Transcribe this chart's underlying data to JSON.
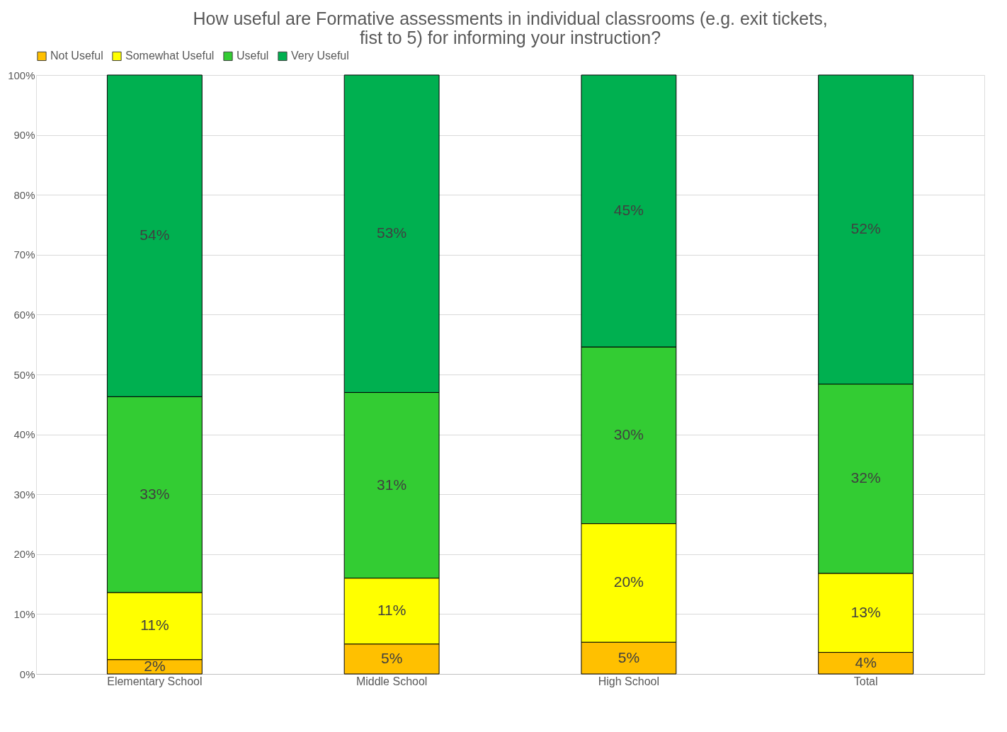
{
  "chart_data": {
    "type": "bar",
    "stacked": true,
    "title": "How useful are Formative assessments in individual classrooms (e.g. exit tickets, fist to 5) for informing your instruction?",
    "categories": [
      "Elementary School",
      "Middle School",
      "High School",
      "Total"
    ],
    "series": [
      {
        "name": "Not Useful",
        "color": "#ffc000",
        "values": [
          2.4,
          5.0,
          5.3,
          3.6
        ],
        "value_labels": [
          "2%",
          "5%",
          "5%",
          "4%"
        ]
      },
      {
        "name": "Somewhat Useful",
        "color": "#ffff00",
        "values": [
          11.2,
          11.0,
          19.8,
          13.2
        ],
        "value_labels": [
          "11%",
          "11%",
          "20%",
          "13%"
        ]
      },
      {
        "name": "Useful",
        "color": "#33cc33",
        "values": [
          32.7,
          31.0,
          29.5,
          31.6
        ],
        "value_labels": [
          "33%",
          "31%",
          "30%",
          "32%"
        ]
      },
      {
        "name": "Very Useful",
        "color": "#00b050",
        "values": [
          53.7,
          53.0,
          45.4,
          51.6
        ],
        "value_labels": [
          "54%",
          "53%",
          "45%",
          "52%"
        ]
      }
    ],
    "ylim": [
      0,
      100
    ],
    "yticks": [
      {
        "value": 0,
        "label": "0%"
      },
      {
        "value": 10,
        "label": "10%"
      },
      {
        "value": 20,
        "label": "20%"
      },
      {
        "value": 30,
        "label": "30%"
      },
      {
        "value": 40,
        "label": "40%"
      },
      {
        "value": 50,
        "label": "50%"
      },
      {
        "value": 60,
        "label": "60%"
      },
      {
        "value": 70,
        "label": "70%"
      },
      {
        "value": 80,
        "label": "80%"
      },
      {
        "value": 90,
        "label": "90%"
      },
      {
        "value": 100,
        "label": "100%"
      }
    ],
    "grid": "y",
    "legend": "top"
  }
}
